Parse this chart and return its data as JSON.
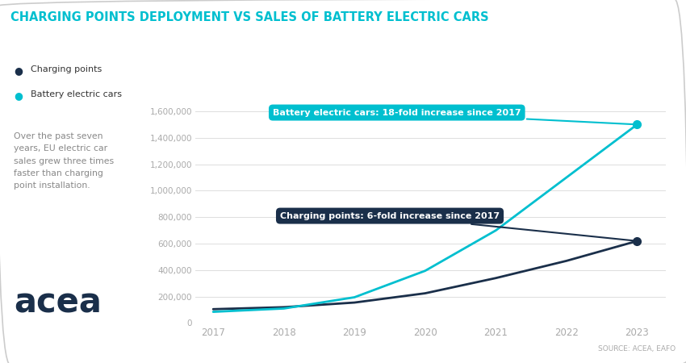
{
  "title": "CHARGING POINTS DEPLOYMENT VS SALES OF BATTERY ELECTRIC CARS",
  "title_color": "#00BFCF",
  "background_color": "#ffffff",
  "years": [
    2017,
    2018,
    2019,
    2020,
    2021,
    2022,
    2023
  ],
  "charging_points": [
    105000,
    120000,
    155000,
    225000,
    340000,
    470000,
    620000
  ],
  "battery_ev": [
    85000,
    110000,
    195000,
    395000,
    700000,
    1100000,
    1500000
  ],
  "charging_color": "#1a2f4a",
  "ev_color": "#00BFCF",
  "ylim": [
    0,
    1700000
  ],
  "yticks": [
    0,
    200000,
    400000,
    600000,
    800000,
    1000000,
    1200000,
    1400000,
    1600000
  ],
  "legend_charging": "Charging points",
  "legend_ev": "Battery electric cars",
  "annotation_ev": "Battery electric cars: 18-fold increase since 2017",
  "annotation_cp": "Charging points: 6-fold increase since 2017",
  "body_text": "Over the past seven\nyears, EU electric car\nsales grew three times\nfaster than charging\npoint installation.",
  "source_text": "SOURCE: ACEA, EAFO",
  "acea_logo_color": "#1a2f4a",
  "grid_color": "#dddddd",
  "tick_color": "#aaaaaa",
  "text_color": "#888888"
}
